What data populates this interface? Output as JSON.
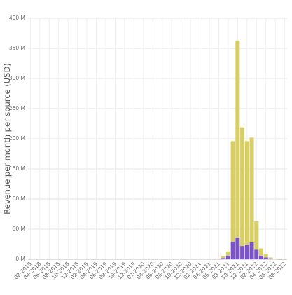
{
  "chart_data": {
    "type": "bar",
    "stacked": true,
    "title": "",
    "xlabel": "",
    "ylabel": "Revenue per month per source (USD)",
    "ylim": [
      0,
      400000000
    ],
    "yticks": [
      0,
      50000000,
      100000000,
      150000000,
      200000000,
      250000000,
      300000000,
      350000000,
      400000000
    ],
    "ytick_labels": [
      "0 M",
      "50 M",
      "100 M",
      "150 M",
      "200 M",
      "250 M",
      "300 M",
      "350 M",
      "400 M"
    ],
    "grid": true,
    "legend": "none",
    "tick_every": 2,
    "categories": [
      "02-2018",
      "03-2018",
      "04-2018",
      "05-2018",
      "06-2018",
      "07-2018",
      "08-2018",
      "09-2018",
      "10-2018",
      "11-2018",
      "12-2018",
      "01-2019",
      "02-2019",
      "03-2019",
      "04-2019",
      "05-2019",
      "06-2019",
      "07-2019",
      "08-2019",
      "09-2019",
      "10-2019",
      "11-2019",
      "12-2019",
      "01-2020",
      "02-2020",
      "03-2020",
      "04-2020",
      "05-2020",
      "06-2020",
      "07-2020",
      "08-2020",
      "09-2020",
      "10-2020",
      "11-2020",
      "12-2020",
      "01-2021",
      "02-2021",
      "03-2021",
      "04-2021",
      "05-2021",
      "06-2021",
      "07-2021",
      "08-2021",
      "09-2021",
      "10-2021",
      "11-2021",
      "12-2021",
      "01-2022",
      "02-2022",
      "03-2022",
      "04-2022",
      "05-2022",
      "06-2022",
      "07-2022",
      "08-2022"
    ],
    "series": [
      {
        "color": "#7b55c6",
        "values": [
          0,
          0,
          0,
          0,
          0,
          0,
          0,
          0,
          0,
          0,
          0,
          0,
          0,
          0,
          0,
          0,
          0,
          0,
          0,
          0,
          0,
          0,
          0,
          0,
          0,
          0,
          0,
          0,
          0,
          0,
          0,
          0,
          0,
          0,
          0,
          0,
          0,
          0,
          0,
          0,
          0.5,
          2,
          6,
          29,
          36,
          22,
          24,
          28,
          16,
          6,
          3,
          1,
          0.5,
          0.2,
          0.1
        ]
      },
      {
        "color": "#d7ce66",
        "values": [
          0,
          0,
          0,
          0,
          0,
          0,
          0,
          0,
          0,
          0,
          0,
          0,
          0,
          0,
          0,
          0,
          0,
          0,
          0,
          0,
          0,
          0,
          0,
          0,
          0,
          0,
          0,
          0,
          0,
          0,
          0,
          0,
          0,
          0,
          0,
          0,
          0,
          0,
          0,
          0,
          0.5,
          3,
          7,
          167,
          327,
          197,
          172,
          174,
          47,
          12,
          6,
          2,
          0.7,
          0.3,
          0.1
        ]
      }
    ],
    "value_unit": "M"
  }
}
